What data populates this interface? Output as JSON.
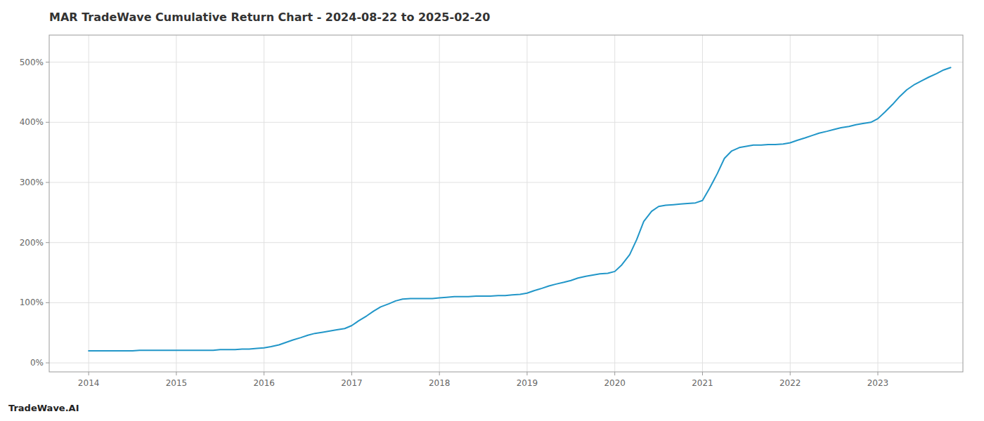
{
  "chart_data": {
    "type": "line",
    "title": "MAR TradeWave Cumulative Return Chart - 2024-08-22 to 2025-02-20",
    "annotations": [
      "TradeWave.AI"
    ],
    "color": "#2196c8",
    "grid": true,
    "x": [
      2014.0,
      2014.08,
      2014.17,
      2014.25,
      2014.33,
      2014.42,
      2014.5,
      2014.58,
      2014.67,
      2014.75,
      2014.83,
      2014.92,
      2015.0,
      2015.08,
      2015.17,
      2015.25,
      2015.33,
      2015.42,
      2015.5,
      2015.58,
      2015.67,
      2015.75,
      2015.83,
      2015.92,
      2016.0,
      2016.08,
      2016.17,
      2016.25,
      2016.33,
      2016.42,
      2016.5,
      2016.58,
      2016.67,
      2016.75,
      2016.83,
      2016.92,
      2017.0,
      2017.08,
      2017.17,
      2017.25,
      2017.33,
      2017.42,
      2017.5,
      2017.58,
      2017.67,
      2017.75,
      2017.83,
      2017.92,
      2018.0,
      2018.08,
      2018.17,
      2018.25,
      2018.33,
      2018.42,
      2018.5,
      2018.58,
      2018.67,
      2018.75,
      2018.83,
      2018.92,
      2019.0,
      2019.08,
      2019.17,
      2019.25,
      2019.33,
      2019.42,
      2019.5,
      2019.58,
      2019.67,
      2019.75,
      2019.83,
      2019.92,
      2020.0,
      2020.08,
      2020.17,
      2020.25,
      2020.33,
      2020.42,
      2020.5,
      2020.58,
      2020.67,
      2020.75,
      2020.83,
      2020.92,
      2021.0,
      2021.08,
      2021.17,
      2021.25,
      2021.33,
      2021.42,
      2021.5,
      2021.58,
      2021.67,
      2021.75,
      2021.83,
      2021.92,
      2022.0,
      2022.08,
      2022.17,
      2022.25,
      2022.33,
      2022.42,
      2022.5,
      2022.58,
      2022.67,
      2022.75,
      2022.83,
      2022.92,
      2023.0,
      2023.08,
      2023.17,
      2023.25,
      2023.33,
      2023.42,
      2023.5,
      2023.58,
      2023.67,
      2023.75,
      2023.83
    ],
    "values": [
      20,
      20,
      20,
      20,
      20,
      20,
      20,
      21,
      21,
      21,
      21,
      21,
      21,
      21,
      21,
      21,
      21,
      21,
      22,
      22,
      22,
      23,
      23,
      24,
      25,
      27,
      30,
      34,
      38,
      42,
      46,
      49,
      51,
      53,
      55,
      57,
      62,
      70,
      78,
      86,
      93,
      98,
      103,
      106,
      107,
      107,
      107,
      107,
      108,
      109,
      110,
      110,
      110,
      111,
      111,
      111,
      112,
      112,
      113,
      114,
      116,
      120,
      124,
      128,
      131,
      134,
      137,
      141,
      144,
      146,
      148,
      149,
      152,
      163,
      180,
      205,
      235,
      252,
      260,
      262,
      263,
      264,
      265,
      266,
      270,
      290,
      315,
      340,
      352,
      358,
      360,
      362,
      362,
      363,
      363,
      364,
      366,
      370,
      374,
      378,
      382,
      385,
      388,
      391,
      393,
      396,
      398,
      400,
      406,
      417,
      430,
      443,
      454,
      463,
      469,
      475,
      481,
      487,
      491
    ],
    "xlim": [
      2013.55,
      2023.97
    ],
    "xticks": [
      2014,
      2015,
      2016,
      2017,
      2018,
      2019,
      2020,
      2021,
      2022,
      2023
    ],
    "ylim": [
      -15,
      545
    ],
    "yticks": [
      {
        "value": 0,
        "label": "0%"
      },
      {
        "value": 100,
        "label": "100%"
      },
      {
        "value": 200,
        "label": "200%"
      },
      {
        "value": 300,
        "label": "300%"
      },
      {
        "value": 400,
        "label": "400%"
      },
      {
        "value": 500,
        "label": "500%"
      }
    ]
  }
}
